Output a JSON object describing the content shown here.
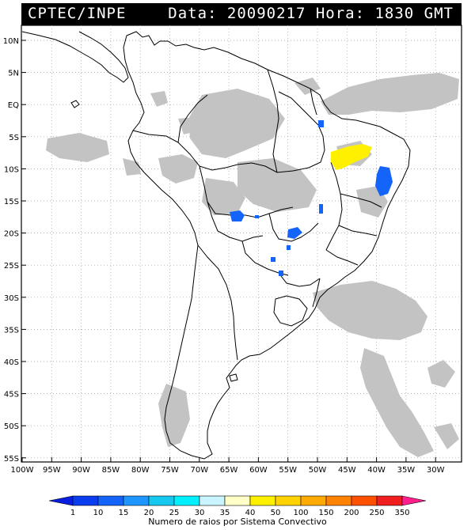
{
  "header": {
    "left_text": "CPTEC/INPE",
    "right_text": "Data: 20090217 Hora: 1830 GMT"
  },
  "map": {
    "lat_labels": [
      "10N",
      "5N",
      "EQ",
      "5S",
      "10S",
      "15S",
      "20S",
      "25S",
      "30S",
      "35S",
      "40S",
      "45S",
      "50S",
      "55S"
    ],
    "lon_labels": [
      "100W",
      "95W",
      "90W",
      "85W",
      "80W",
      "75W",
      "70W",
      "65W",
      "60W",
      "55W",
      "50W",
      "45W",
      "40W",
      "35W",
      "30W"
    ]
  },
  "legend": {
    "values": [
      "1",
      "10",
      "15",
      "20",
      "25",
      "30",
      "35",
      "40",
      "50",
      "100",
      "150",
      "200",
      "250",
      "350"
    ],
    "colors": [
      "#0a1ee0",
      "#0a3cf0",
      "#1464fa",
      "#1e96ff",
      "#14c8f0",
      "#00f0ff",
      "#c8f5ff",
      "#ffffc8",
      "#fff000",
      "#ffd200",
      "#ffaa00",
      "#ff8200",
      "#ff5000",
      "#f01e1e",
      "#ff1e8c"
    ],
    "caption": "Numero de raios por Sistema Convectivo"
  },
  "colors": {
    "cloud": "#c3c3c3",
    "lightning_low": "#1464fa",
    "lightning_high": "#fff000"
  }
}
